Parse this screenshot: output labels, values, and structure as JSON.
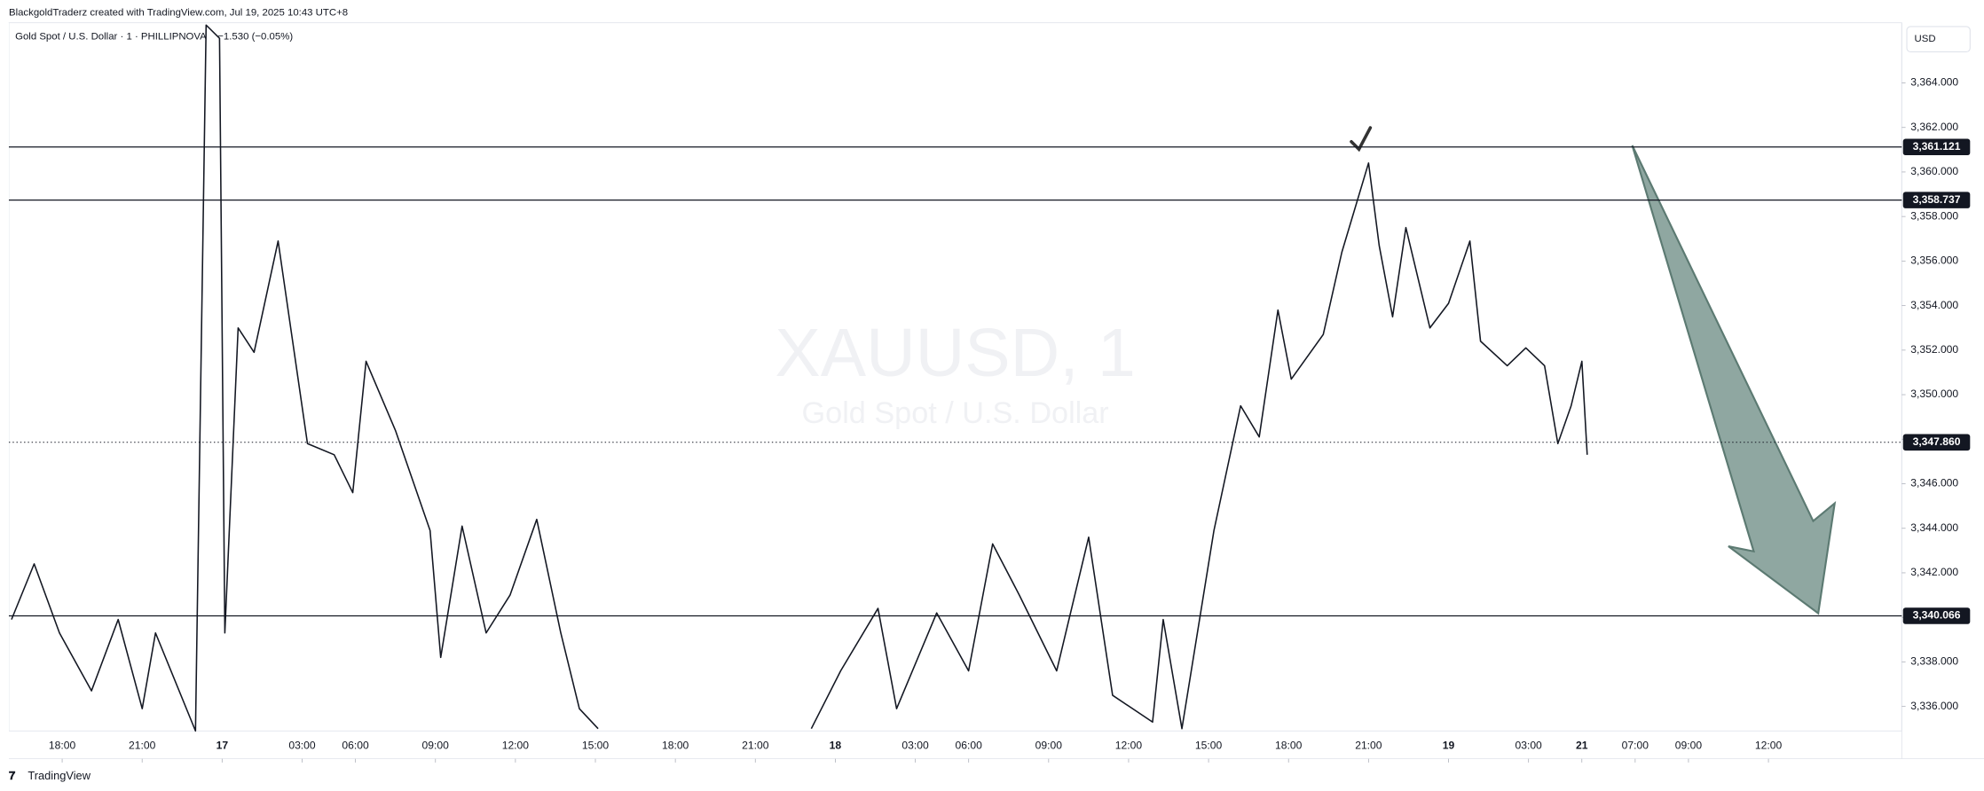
{
  "header": {
    "credit": "BlackgoldTraderz created with TradingView.com, Jul 19, 2025 10:43 UTC+8",
    "brand": "TradingView"
  },
  "chart_data": {
    "type": "line",
    "title": "Gold Spot / U.S. Dollar · 1 · PHILLIPNOVA",
    "change": "−1.530 (−0.05%)",
    "watermark": "XAUUSD, 1",
    "watermark_subtitle": "Gold Spot / U.S. Dollar",
    "currency": "USD",
    "color": "#131722",
    "x": [
      -1.9,
      -1.05,
      -0.1,
      1.1,
      2.1,
      3,
      3.5,
      5,
      5.4,
      5.9,
      6.1,
      6.6,
      7.2,
      8.1,
      9.2,
      10.2,
      10.9,
      11.4,
      12.5,
      13.8,
      14.2,
      15,
      15.9,
      16.8,
      17.8,
      18.7,
      19.4,
      20.1,
      24,
      28.1,
      29.2,
      30.6,
      31.3,
      32.8,
      34,
      34.9,
      35.9,
      37.3,
      38.5,
      39.4,
      40.9,
      41.3,
      42,
      43.2,
      44.2,
      44.9,
      45.6,
      46.1,
      47.3,
      48,
      49,
      49.4,
      49.9,
      50.4,
      51.3,
      52,
      52.8,
      53.2,
      54.2,
      54.9,
      55.6,
      56.1,
      56.6,
      57,
      57.2
    ],
    "values": [
      3339.9,
      3342.4,
      3339.3,
      3336.7,
      3339.9,
      3335.9,
      3339.3,
      3334.9,
      3366.6,
      3366,
      3339.3,
      3353,
      3351.9,
      3356.9,
      3347.8,
      3347.3,
      3345.6,
      3351.5,
      3348.4,
      3343.9,
      3338.2,
      3344.1,
      3339.3,
      3341,
      3344.4,
      3339.3,
      3335.9,
      3335,
      null,
      3335,
      3337.6,
      3340.4,
      3335.9,
      3340.2,
      3337.6,
      3343.3,
      3341,
      3337.6,
      3343.6,
      3336.5,
      3335.3,
      3339.9,
      3335,
      3343.9,
      3349.5,
      3348.1,
      3353.8,
      3350.7,
      3352.7,
      3356.4,
      3360.4,
      3356.7,
      3353.5,
      3357.5,
      3353,
      3354.1,
      3356.9,
      3352.4,
      3351.3,
      3352.1,
      3351.3,
      3347.8,
      3349.5,
      3351.5,
      3347.3
    ],
    "levels": {
      "values": [
        3361.121,
        3358.737,
        3340.066
      ],
      "value_labels": [
        "3,361.121",
        "3,358.737",
        "3,340.066"
      ]
    },
    "last_price": {
      "value": 3347.86,
      "label": "3,347.860"
    },
    "xlim": [
      -2,
      69
    ],
    "ylim": [
      3334.9,
      3366.7
    ],
    "xticks": [
      {
        "value": 0,
        "label": "18:00"
      },
      {
        "value": 3,
        "label": "21:00"
      },
      {
        "value": 6,
        "label": "17"
      },
      {
        "value": 9,
        "label": "03:00"
      },
      {
        "value": 11,
        "label": "06:00"
      },
      {
        "value": 14,
        "label": "09:00"
      },
      {
        "value": 17,
        "label": "12:00"
      },
      {
        "value": 20,
        "label": "15:00"
      },
      {
        "value": 23,
        "label": "18:00"
      },
      {
        "value": 26,
        "label": "21:00"
      },
      {
        "value": 29,
        "label": "18"
      },
      {
        "value": 32,
        "label": "03:00"
      },
      {
        "value": 34,
        "label": "06:00"
      },
      {
        "value": 37,
        "label": "09:00"
      },
      {
        "value": 40,
        "label": "12:00"
      },
      {
        "value": 43,
        "label": "15:00"
      },
      {
        "value": 46,
        "label": "18:00"
      },
      {
        "value": 49,
        "label": "21:00"
      },
      {
        "value": 52,
        "label": "19"
      },
      {
        "value": 55,
        "label": "03:00"
      },
      {
        "value": 57,
        "label": "21"
      },
      {
        "value": 59,
        "label": "07:00"
      },
      {
        "value": 61,
        "label": "09:00"
      },
      {
        "value": 64,
        "label": "12:00"
      }
    ],
    "yticks": [
      {
        "value": 3336,
        "label": "3,336.000"
      },
      {
        "value": 3338,
        "label": "3,338.000"
      },
      {
        "value": 3340,
        "label": "3,340.000"
      },
      {
        "value": 3342,
        "label": "3,342.000"
      },
      {
        "value": 3344,
        "label": "3,344.000"
      },
      {
        "value": 3346,
        "label": "3,346.000"
      },
      {
        "value": 3348,
        "label": "3,348.000"
      },
      {
        "value": 3350,
        "label": "3,350.000"
      },
      {
        "value": 3352,
        "label": "3,352.000"
      },
      {
        "value": 3354,
        "label": "3,354.000"
      },
      {
        "value": 3356,
        "label": "3,356.000"
      },
      {
        "value": 3358,
        "label": "3,358.000"
      },
      {
        "value": 3360,
        "label": "3,360.000"
      },
      {
        "value": 3362,
        "label": "3,362.000"
      },
      {
        "value": 3364,
        "label": "3,364.000"
      }
    ]
  }
}
